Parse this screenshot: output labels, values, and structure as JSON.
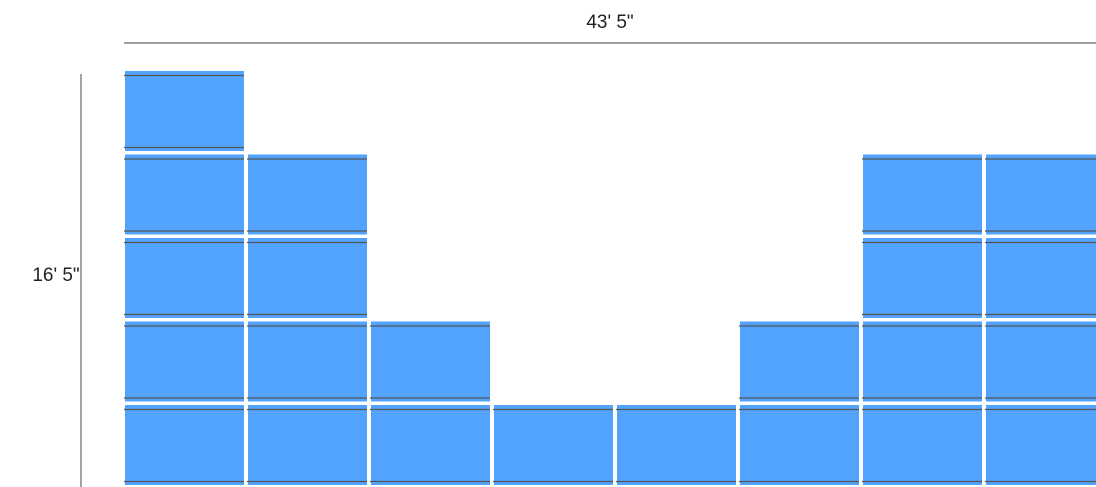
{
  "dimensions": {
    "width_label": "43' 5\"",
    "height_label": "16' 5\""
  },
  "panel_color": "#52a3fd",
  "rail_color": "#555555",
  "grid": {
    "columns": 8,
    "rows": 5,
    "column_heights": [
      5,
      4,
      2,
      1,
      1,
      2,
      4,
      4
    ]
  }
}
